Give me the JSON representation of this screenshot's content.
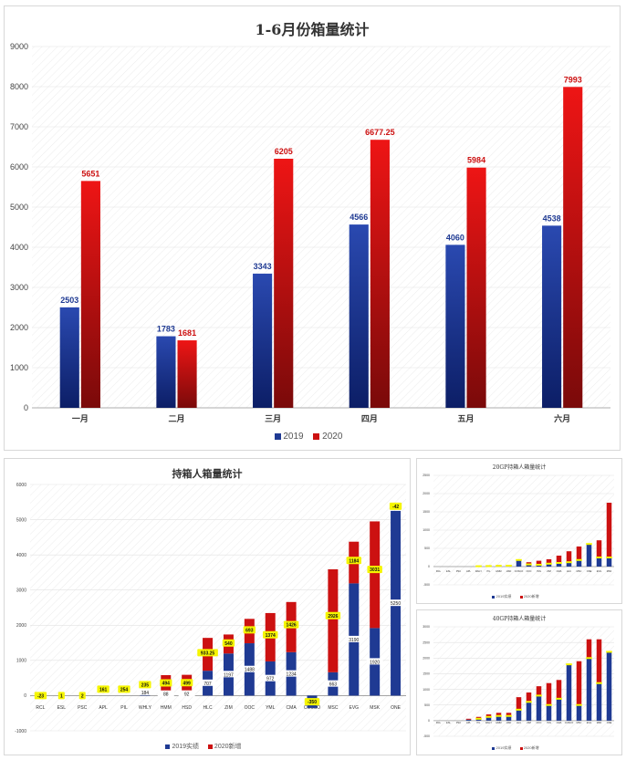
{
  "chart_data": [
    {
      "id": "main",
      "type": "bar",
      "title": "1-6月份箱量统计",
      "categories": [
        "一月",
        "二月",
        "三月",
        "四月",
        "五月",
        "六月"
      ],
      "series": [
        {
          "name": "2019",
          "color": "#1f3a93",
          "values": [
            2503,
            1783,
            3343,
            4566,
            4060,
            4538
          ],
          "labels": [
            "2503",
            "1783",
            "3343",
            "4566",
            "4060",
            "4538"
          ]
        },
        {
          "name": "2020",
          "color": "#cc1111",
          "values": [
            5651,
            1681,
            6205,
            6677.25,
            5984,
            7993
          ],
          "labels": [
            "5651",
            "1681",
            "6205",
            "6677.25",
            "5984",
            "7993"
          ]
        }
      ],
      "ylim": [
        0,
        9000
      ],
      "yticks": [
        0,
        1000,
        2000,
        3000,
        4000,
        5000,
        6000,
        7000,
        8000,
        9000
      ],
      "ytick_labels": [
        "0",
        "1000",
        "2000",
        "3000",
        "4000",
        "5000",
        "6000",
        "7000",
        "8000",
        "9000"
      ],
      "legend": "bottom-center"
    },
    {
      "id": "carriers",
      "type": "bar",
      "stacked": true,
      "title": "持箱人箱量统计",
      "categories": [
        "RCL",
        "ESL",
        "PSC",
        "APL",
        "PIL",
        "WHLY",
        "HMM",
        "HSD",
        "HLC",
        "ZIM",
        "OOC",
        "YML",
        "CMA",
        "COSCO",
        "MSC",
        "EVG",
        "MSK",
        "ONE"
      ],
      "series": [
        {
          "name": "2019实绩",
          "color": "#1f3a93",
          "values": [
            0,
            0,
            0,
            0,
            0,
            184,
            88,
            92,
            707,
            1197,
            1488,
            972,
            1234,
            -350,
            663,
            3190,
            1920,
            5250
          ],
          "labels": [
            "",
            "",
            "",
            "",
            "",
            "184",
            "88",
            "92",
            "707",
            "1197",
            "1488",
            "972",
            "1234",
            "",
            "663",
            "3190",
            "1920",
            "5250"
          ]
        },
        {
          "name": "2020新增",
          "color": "#cc1111",
          "values": [
            0,
            0,
            0,
            0,
            0,
            0,
            494,
            499,
            933.25,
            540,
            693,
            1374,
            1426,
            0,
            2926,
            1184,
            3031,
            0
          ],
          "labels": [
            "",
            "",
            "",
            "",
            "",
            "",
            "",
            "",
            "",
            "",
            "",
            "",
            "",
            "",
            "",
            "",
            "",
            ""
          ]
        }
      ],
      "highlight_labels": [
        "-23",
        "1",
        "2",
        "161",
        "254",
        "235",
        "494",
        "499",
        "933.25",
        "540",
        "693",
        "1374",
        "1426",
        "-350",
        "2926",
        "1184",
        "3031",
        "-42"
      ],
      "ylim": [
        -1000,
        6000
      ],
      "yticks": [
        -1000,
        0,
        1000,
        2000,
        3000,
        4000,
        5000,
        6000
      ],
      "ytick_labels": [
        "-1000",
        "0",
        "1000",
        "2000",
        "3000",
        "4000",
        "5000",
        "6000"
      ],
      "legend": "bottom-center"
    },
    {
      "id": "small20",
      "type": "bar",
      "stacked": true,
      "title": "20GP持箱人箱量统计",
      "categories": [
        "RCL",
        "ESL",
        "PSC",
        "APL",
        "WHLY",
        "PIL",
        "HMM",
        "HSD",
        "COSCO",
        "OOC",
        "YML",
        "ZIM",
        "CMA",
        "HLC",
        "MSC",
        "ONE",
        "EVG",
        "MSK"
      ],
      "series": [
        {
          "name": "2019实绩",
          "color": "#1f3a93",
          "values": [
            0,
            0,
            0,
            0,
            10,
            15,
            20,
            25,
            180,
            60,
            50,
            80,
            100,
            120,
            180,
            620,
            250,
            250
          ],
          "labels": []
        },
        {
          "name": "2020新增",
          "color": "#cc1111",
          "values": [
            0,
            0,
            0,
            0,
            10,
            15,
            20,
            25,
            0,
            60,
            110,
            120,
            200,
            300,
            370,
            0,
            470,
            1500
          ],
          "labels": []
        }
      ],
      "ylim": [
        -500,
        2500
      ],
      "yticks": [
        -500,
        0,
        500,
        1000,
        1500,
        2000,
        2500
      ],
      "ytick_labels": [
        "-500",
        "0",
        "500",
        "1000",
        "1500",
        "2000",
        "2500"
      ],
      "legend": "bottom-center"
    },
    {
      "id": "small40",
      "type": "bar",
      "stacked": true,
      "title": "40GP持箱人箱量统计",
      "categories": [
        "RCL",
        "ESL",
        "PSC",
        "APL",
        "PIL",
        "WHLY",
        "HMM",
        "HSD",
        "HLC",
        "ZIM",
        "OOC",
        "YML",
        "CMA",
        "COSCO",
        "MSC",
        "EVG",
        "MSK",
        "ONE"
      ],
      "series": [
        {
          "name": "2019实绩",
          "color": "#1f3a93",
          "values": [
            0,
            0,
            0,
            30,
            60,
            120,
            150,
            150,
            350,
            600,
            800,
            500,
            700,
            1800,
            500,
            2000,
            1200,
            2200
          ],
          "labels": []
        },
        {
          "name": "2020新增",
          "color": "#cc1111",
          "values": [
            0,
            0,
            0,
            30,
            60,
            80,
            100,
            100,
            400,
            300,
            300,
            700,
            600,
            0,
            1400,
            600,
            1400,
            0
          ],
          "labels": []
        }
      ],
      "ylim": [
        -500,
        3000
      ],
      "yticks": [
        -500,
        0,
        500,
        1000,
        1500,
        2000,
        2500,
        3000
      ],
      "ytick_labels": [
        "-500",
        "0",
        "500",
        "1000",
        "1500",
        "2000",
        "2500",
        "3000"
      ],
      "legend": "bottom-center"
    }
  ]
}
